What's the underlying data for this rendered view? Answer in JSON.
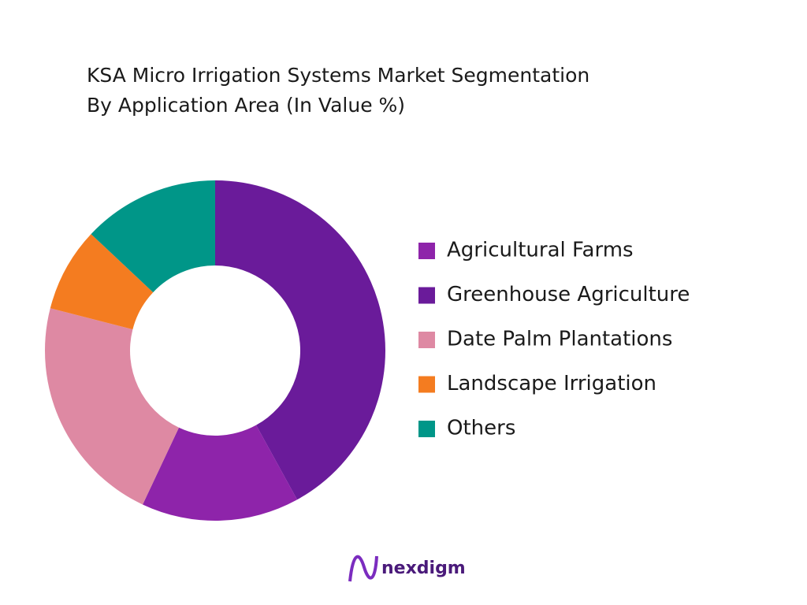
{
  "chart_data": {
    "type": "donut",
    "title": [
      "KSA Micro Irrigation Systems Market Segmentation",
      "By Application Area (In Value %)"
    ],
    "categories": [
      "Agricultural Farms",
      "Greenhouse Agriculture",
      "Date Palm Plantations",
      "Landscape Irrigation",
      "Others"
    ],
    "values": [
      15,
      42,
      22,
      8,
      13
    ],
    "colors": [
      "#8e24aa",
      "#6a1b9a",
      "#de89a3",
      "#f47c20",
      "#009688"
    ],
    "legend": "right"
  },
  "logo": "nexdigm"
}
